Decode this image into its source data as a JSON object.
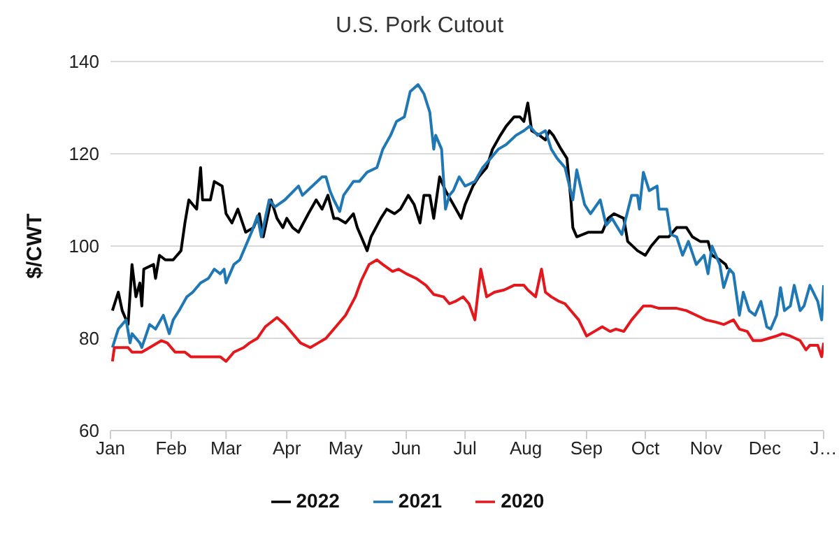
{
  "chart_data": {
    "type": "line",
    "title": "U.S. Pork Cutout",
    "ylabel": "$/CWT",
    "xlim": [
      "--01-01",
      "--12-31"
    ],
    "xticks": [
      {
        "value": "--01-01",
        "label": "Jan"
      },
      {
        "value": "--02-01",
        "label": "Feb"
      },
      {
        "value": "--03-01",
        "label": "Mar"
      },
      {
        "value": "--04-01",
        "label": "Apr"
      },
      {
        "value": "--05-01",
        "label": "May"
      },
      {
        "value": "--06-01",
        "label": "Jun"
      },
      {
        "value": "--07-01",
        "label": "Jul"
      },
      {
        "value": "--08-01",
        "label": "Aug"
      },
      {
        "value": "--09-01",
        "label": "Sep"
      },
      {
        "value": "--10-01",
        "label": "Oct"
      },
      {
        "value": "--11-01",
        "label": "Nov"
      },
      {
        "value": "--12-01",
        "label": "Dec"
      },
      {
        "value": "--12-31",
        "label": "J…"
      }
    ],
    "ylim": [
      60,
      140
    ],
    "yticks": [
      60,
      80,
      100,
      120,
      140
    ],
    "grid": "y",
    "legend": "bottom",
    "marker": "none",
    "line_style": "solid",
    "series": [
      {
        "name": "2022",
        "color": "#000000",
        "x": [
          "--01-02",
          "--01-05",
          "--01-07",
          "--01-10",
          "--01-12",
          "--01-14",
          "--01-16",
          "--01-17",
          "--01-18",
          "--01-23",
          "--01-24",
          "--01-26",
          "--01-29",
          "--02-02",
          "--02-06",
          "--02-08",
          "--02-10",
          "--02-14",
          "--02-16",
          "--02-17",
          "--02-21",
          "--02-23",
          "--02-27",
          "--03-01",
          "--03-04",
          "--03-07",
          "--03-11",
          "--03-15",
          "--03-18",
          "--03-20",
          "--03-24",
          "--03-27",
          "--03-30",
          "--04-01",
          "--04-04",
          "--04-07",
          "--04-12",
          "--04-16",
          "--04-19",
          "--04-22",
          "--04-25",
          "--04-27",
          "--05-01",
          "--05-05",
          "--05-07",
          "--05-09",
          "--05-12",
          "--05-14",
          "--05-19",
          "--05-22",
          "--05-26",
          "--05-29",
          "--06-02",
          "--06-05",
          "--06-08",
          "--06-10",
          "--06-13",
          "--06-15",
          "--06-18",
          "--06-21",
          "--06-25",
          "--06-29",
          "--07-01",
          "--07-05",
          "--07-08",
          "--07-12",
          "--07-15",
          "--07-19",
          "--07-22",
          "--07-26",
          "--07-29",
          "--07-31",
          "--08-02",
          "--08-04",
          "--08-08",
          "--08-11",
          "--08-13",
          "--08-15",
          "--08-19",
          "--08-22",
          "--08-24",
          "--08-25",
          "--08-27",
          "--09-02",
          "--09-09",
          "--09-12",
          "--09-15",
          "--09-20",
          "--09-22",
          "--09-27",
          "--10-01",
          "--10-04",
          "--10-08",
          "--10-13",
          "--10-17",
          "--10-22",
          "--10-25",
          "--10-29",
          "--11-02",
          "--11-04",
          "--11-08",
          "--11-11",
          "--11-12"
        ],
        "values": [
          86,
          90,
          86,
          83,
          96,
          89,
          92,
          87,
          95,
          96,
          93,
          98,
          97,
          97,
          99,
          105,
          110,
          108,
          117,
          110,
          110,
          114,
          113,
          107,
          105,
          108,
          103,
          104,
          107,
          102,
          110,
          106,
          104,
          106,
          104,
          103,
          107,
          110,
          108,
          111,
          106,
          106,
          105,
          107,
          104,
          102,
          99,
          102,
          106,
          108,
          107,
          108,
          111,
          109,
          105,
          111,
          111,
          106,
          115,
          112,
          109,
          106,
          109,
          113,
          115,
          117,
          121,
          124,
          126,
          128,
          128,
          127,
          131,
          125,
          124,
          123,
          125,
          124,
          121,
          119,
          110,
          104,
          102,
          103,
          103,
          106,
          107,
          106,
          101,
          99,
          98,
          100,
          102,
          102,
          104,
          104,
          102,
          101,
          101,
          98,
          97,
          96,
          95
        ]
      },
      {
        "name": "2021",
        "color": "#1f78b4",
        "x": [
          "--01-02",
          "--01-05",
          "--01-09",
          "--01-11",
          "--01-12",
          "--01-16",
          "--01-17",
          "--01-21",
          "--01-24",
          "--01-28",
          "--01-31",
          "--02-02",
          "--02-05",
          "--02-09",
          "--02-12",
          "--02-16",
          "--02-20",
          "--02-23",
          "--02-26",
          "--02-28",
          "--03-01",
          "--03-05",
          "--03-08",
          "--03-12",
          "--03-14",
          "--03-17",
          "--03-19",
          "--03-23",
          "--03-26",
          "--03-31",
          "--04-07",
          "--04-09",
          "--04-14",
          "--04-19",
          "--04-21",
          "--04-23",
          "--04-25",
          "--04-28",
          "--04-30",
          "--05-05",
          "--05-08",
          "--05-12",
          "--05-17",
          "--05-20",
          "--05-24",
          "--05-27",
          "--05-31",
          "--06-03",
          "--06-07",
          "--06-10",
          "--06-13",
          "--06-15",
          "--06-16",
          "--06-19",
          "--06-21",
          "--06-23",
          "--06-25",
          "--06-28",
          "--07-01",
          "--07-06",
          "--07-10",
          "--07-14",
          "--07-18",
          "--07-22",
          "--07-27",
          "--07-31",
          "--08-03",
          "--08-07",
          "--08-11",
          "--08-14",
          "--08-17",
          "--08-21",
          "--08-25",
          "--08-27",
          "--08-31",
          "--09-03",
          "--09-08",
          "--09-11",
          "--09-14",
          "--09-19",
          "--09-24",
          "--09-27",
          "--09-28",
          "--09-30",
          "--10-03",
          "--10-07",
          "--10-08",
          "--10-12",
          "--10-14",
          "--10-17",
          "--10-20",
          "--10-23",
          "--10-27",
          "--10-31",
          "--11-02",
          "--11-04",
          "--11-08",
          "--11-10",
          "--11-13",
          "--11-15",
          "--11-18",
          "--11-20",
          "--11-23",
          "--11-26",
          "--11-29",
          "--12-02",
          "--12-04",
          "--12-07",
          "--12-09",
          "--12-11",
          "--12-14",
          "--12-16",
          "--12-19",
          "--12-21",
          "--12-24",
          "--12-28",
          "--12-30",
          "--12-31"
        ],
        "values": [
          78,
          82,
          84,
          79,
          81,
          79,
          78,
          83,
          82,
          85,
          81,
          84,
          86,
          89,
          90,
          92,
          93,
          95,
          94,
          95,
          92,
          96,
          97,
          101,
          103,
          106.5,
          102,
          110,
          108.5,
          110,
          113,
          111,
          113,
          115,
          115,
          112,
          110,
          107.5,
          111,
          114,
          114,
          116,
          117,
          121,
          124,
          127,
          128,
          133.5,
          135,
          133,
          129,
          121,
          124,
          121,
          108,
          111,
          112,
          115,
          113,
          114,
          117,
          119,
          121,
          122,
          124,
          125,
          126,
          124,
          125,
          121,
          119,
          117,
          110,
          116.5,
          109,
          107,
          110,
          104.5,
          106,
          102.5,
          111,
          111,
          108,
          116,
          112,
          113,
          108,
          108,
          102.5,
          102,
          98,
          101,
          96,
          98,
          94,
          100,
          96,
          91,
          95,
          94,
          85,
          90,
          86,
          85,
          88,
          82.5,
          82,
          85,
          91,
          86,
          87,
          91.5,
          86,
          87,
          91.5,
          88,
          84,
          91.5
        ]
      },
      {
        "name": "2020",
        "color": "#e3171c",
        "x": [
          "--01-02",
          "--01-03",
          "--01-07",
          "--01-10",
          "--01-12",
          "--01-17",
          "--01-21",
          "--01-27",
          "--01-30",
          "--02-03",
          "--02-08",
          "--02-11",
          "--02-16",
          "--02-21",
          "--02-26",
          "--03-01",
          "--03-05",
          "--03-10",
          "--03-13",
          "--03-17",
          "--03-21",
          "--03-27",
          "--03-31",
          "--04-05",
          "--04-08",
          "--04-13",
          "--04-17",
          "--04-21",
          "--04-26",
          "--05-01",
          "--05-06",
          "--05-09",
          "--05-13",
          "--05-17",
          "--05-20",
          "--05-25",
          "--05-28",
          "--06-01",
          "--06-06",
          "--06-11",
          "--06-15",
          "--06-20",
          "--06-23",
          "--06-26",
          "--06-30",
          "--07-03",
          "--07-06",
          "--07-09",
          "--07-12",
          "--07-16",
          "--07-21",
          "--07-26",
          "--07-31",
          "--08-02",
          "--08-06",
          "--08-09",
          "--08-11",
          "--08-14",
          "--08-18",
          "--08-21",
          "--08-25",
          "--08-28",
          "--09-01",
          "--09-05",
          "--09-09",
          "--09-13",
          "--09-16",
          "--09-20",
          "--09-24",
          "--09-27",
          "--09-30",
          "--10-04",
          "--10-08",
          "--10-13",
          "--10-17",
          "--10-22",
          "--10-27",
          "--11-01",
          "--11-06",
          "--11-10",
          "--11-15",
          "--11-18",
          "--11-22",
          "--11-25",
          "--11-29",
          "--12-03",
          "--12-07",
          "--12-10",
          "--12-14",
          "--12-19",
          "--12-22",
          "--12-24",
          "--12-28",
          "--12-30",
          "--12-31"
        ],
        "values": [
          75,
          78,
          78,
          78,
          77,
          77,
          78,
          79.5,
          79,
          77,
          77,
          76,
          76,
          76,
          76,
          75,
          77,
          78,
          79,
          80,
          82.5,
          84.5,
          83,
          80.5,
          79,
          78,
          79,
          80,
          82.5,
          85,
          89,
          92.5,
          96,
          97,
          96,
          94.5,
          95,
          94,
          93,
          91.5,
          89.5,
          89,
          87.5,
          88,
          89,
          87.5,
          84,
          95,
          89,
          90,
          90.5,
          91.5,
          91.5,
          90.5,
          89,
          95,
          90,
          89,
          88,
          87.5,
          85.5,
          84,
          80.5,
          81.5,
          82.5,
          81.5,
          82,
          81.5,
          84,
          85.5,
          87,
          87,
          86.5,
          86.5,
          86.5,
          86,
          85,
          84,
          83.5,
          83,
          84,
          82,
          81.5,
          79.5,
          79.5,
          80,
          80.5,
          81,
          80.5,
          79.5,
          77.5,
          78.5,
          78.5,
          76,
          79
        ]
      }
    ]
  }
}
